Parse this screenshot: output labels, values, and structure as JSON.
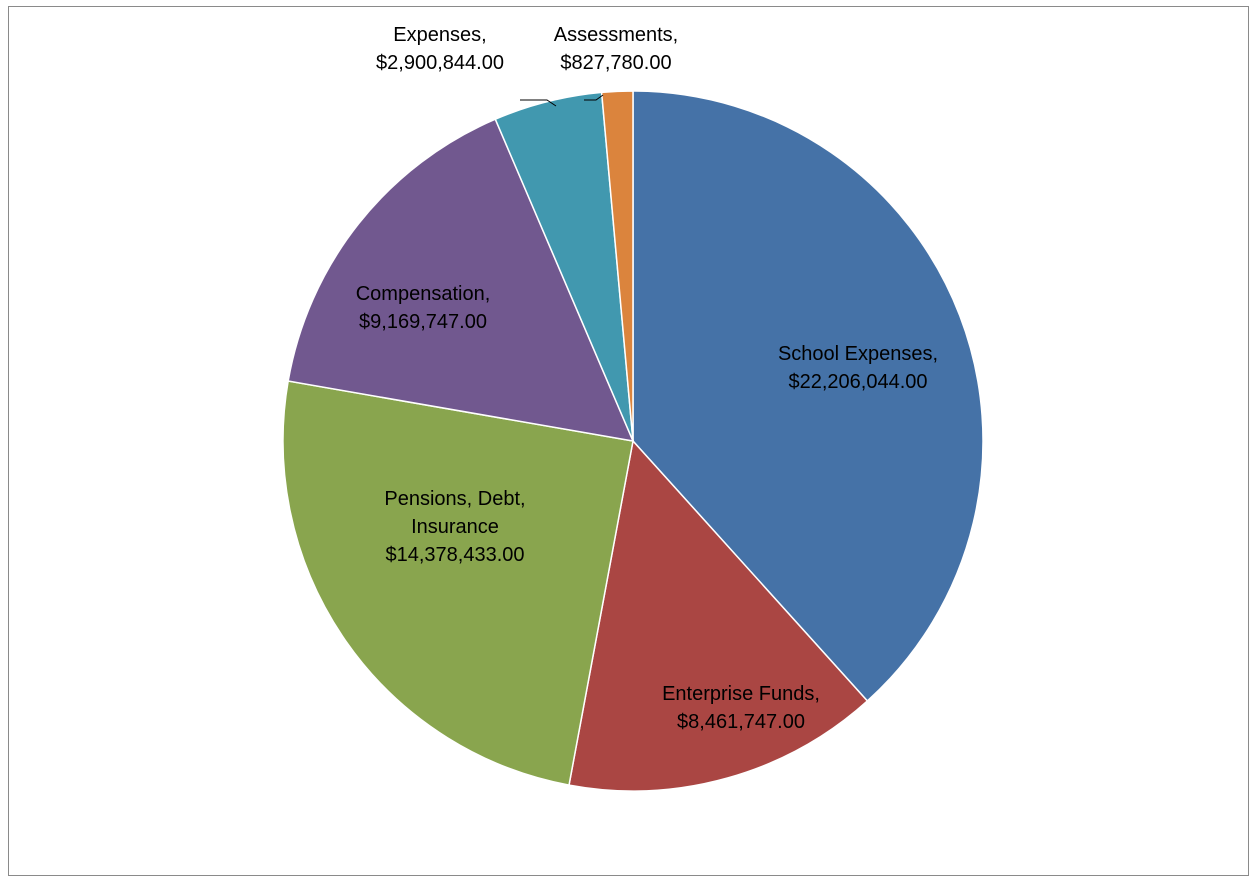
{
  "chart_data": {
    "type": "pie",
    "title": "",
    "start_angle_deg": 0,
    "direction": "clockwise",
    "slices": [
      {
        "label_lines": [
          "School Expenses,",
          "$22,206,044.00"
        ],
        "value": 22206044.0,
        "color": "#4572A7"
      },
      {
        "label_lines": [
          "Enterprise Funds,",
          "$8,461,747.00"
        ],
        "value": 8461747.0,
        "color": "#AA4643"
      },
      {
        "label_lines": [
          "Pensions, Debt,",
          "Insurance",
          "$14,378,433.00"
        ],
        "value": 14378433.0,
        "color": "#89A54E"
      },
      {
        "label_lines": [
          "Compensation,",
          "$9,169,747.00"
        ],
        "value": 9169747.0,
        "color": "#71588F"
      },
      {
        "label_lines": [
          "Expenses,",
          "$2,900,844.00"
        ],
        "value": 2900844.0,
        "color": "#4198AF"
      },
      {
        "label_lines": [
          "Assessments,",
          "$827,780.00"
        ],
        "value": 827780.0,
        "color": "#DB843D"
      }
    ]
  }
}
